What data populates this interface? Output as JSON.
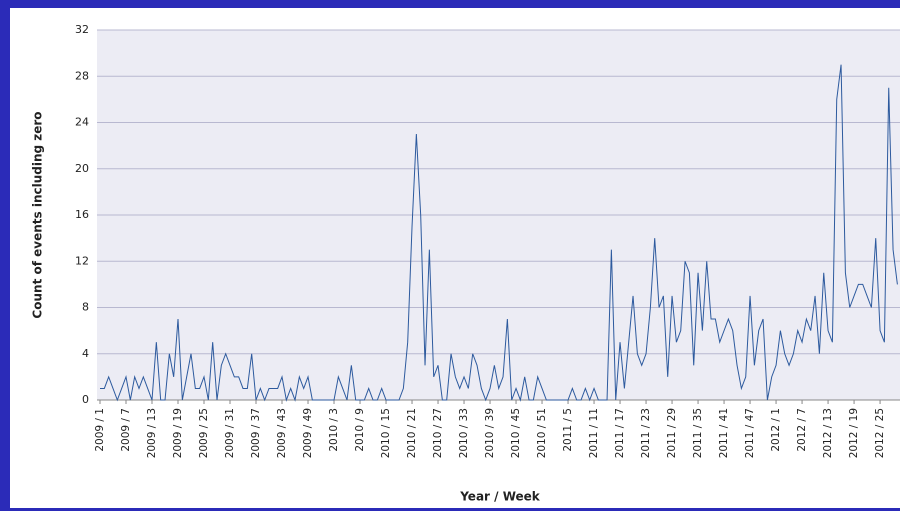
{
  "chart_data": {
    "type": "line",
    "y_label": "Count of events including zero",
    "x_label": "Year / Week",
    "ylim": [
      0,
      32
    ],
    "yticks": [
      0,
      4,
      8,
      12,
      16,
      20,
      24,
      28,
      32
    ],
    "grid": true,
    "categories": [
      "2009 / 1",
      null,
      null,
      null,
      null,
      null,
      "2009 / 7",
      null,
      null,
      null,
      null,
      null,
      "2009 / 13",
      null,
      null,
      null,
      null,
      null,
      "2009 / 19",
      null,
      null,
      null,
      null,
      null,
      "2009 / 25",
      null,
      null,
      null,
      null,
      null,
      "2009 / 31",
      null,
      null,
      null,
      null,
      null,
      "2009 / 37",
      null,
      null,
      null,
      null,
      null,
      "2009 / 43",
      null,
      null,
      null,
      null,
      null,
      "2009 / 49",
      null,
      null,
      null,
      null,
      null,
      "2010 / 3",
      null,
      null,
      null,
      null,
      null,
      "2010 / 9",
      null,
      null,
      null,
      null,
      null,
      "2010 / 15",
      null,
      null,
      null,
      null,
      null,
      "2010 / 21",
      null,
      null,
      null,
      null,
      null,
      "2010 / 27",
      null,
      null,
      null,
      null,
      null,
      "2010 / 33",
      null,
      null,
      null,
      null,
      null,
      "2010 / 39",
      null,
      null,
      null,
      null,
      null,
      "2010 / 45",
      null,
      null,
      null,
      null,
      null,
      "2010 / 51",
      null,
      null,
      null,
      null,
      null,
      "2011 / 5",
      null,
      null,
      null,
      null,
      null,
      "2011 / 11",
      null,
      null,
      null,
      null,
      null,
      "2011 / 17",
      null,
      null,
      null,
      null,
      null,
      "2011 / 23",
      null,
      null,
      null,
      null,
      null,
      "2011 / 29",
      null,
      null,
      null,
      null,
      null,
      "2011 / 35",
      null,
      null,
      null,
      null,
      null,
      "2011 / 41",
      null,
      null,
      null,
      null,
      null,
      "2011 / 47",
      null,
      null,
      null,
      null,
      null,
      "2012 / 1",
      null,
      null,
      null,
      null,
      null,
      "2012 / 7",
      null,
      null,
      null,
      null,
      null,
      "2012 / 13",
      null,
      null,
      null,
      null,
      null,
      "2012 / 19",
      null,
      null,
      null,
      null,
      null,
      "2012 / 25",
      null,
      null,
      null,
      null
    ],
    "series": [
      {
        "color": "#2d5a9e",
        "values": [
          1,
          1,
          2,
          1,
          0,
          1,
          2,
          0,
          2,
          1,
          2,
          1,
          0,
          5,
          0,
          0,
          4,
          2,
          7,
          0,
          2,
          4,
          1,
          1,
          2,
          0,
          5,
          0,
          3,
          4,
          3,
          2,
          2,
          1,
          1,
          4,
          0,
          1,
          0,
          1,
          1,
          1,
          2,
          0,
          1,
          0,
          2,
          1,
          2,
          0,
          0,
          0,
          0,
          0,
          0,
          2,
          1,
          0,
          3,
          0,
          0,
          0,
          1,
          0,
          0,
          1,
          0,
          0,
          0,
          0,
          1,
          5,
          15,
          23,
          16,
          3,
          13,
          2,
          3,
          0,
          0,
          4,
          2,
          1,
          2,
          1,
          4,
          3,
          1,
          0,
          1,
          3,
          1,
          2,
          7,
          0,
          1,
          0,
          2,
          0,
          0,
          2,
          1,
          0,
          0,
          0,
          0,
          0,
          0,
          1,
          0,
          0,
          1,
          0,
          1,
          0,
          0,
          0,
          13,
          0,
          5,
          1,
          5,
          9,
          4,
          3,
          4,
          8,
          14,
          8,
          9,
          2,
          9,
          5,
          6,
          12,
          11,
          3,
          11,
          6,
          12,
          7,
          7,
          5,
          6,
          7,
          6,
          3,
          1,
          2,
          9,
          3,
          6,
          7,
          0,
          2,
          3,
          6,
          4,
          3,
          4,
          6,
          5,
          7,
          6,
          9,
          4,
          11,
          6,
          5,
          26,
          29,
          11,
          8,
          9,
          10,
          10,
          9,
          8,
          14,
          6,
          5,
          27,
          13,
          10
        ]
      }
    ]
  }
}
